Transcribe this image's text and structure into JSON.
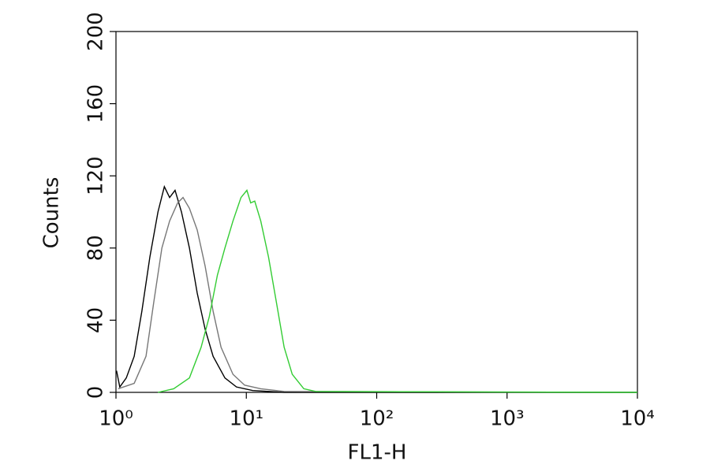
{
  "chart_data": {
    "type": "line",
    "x_label": "FL1-H",
    "y_label": "Counts",
    "xscale": "log",
    "xlim": [
      1,
      10000
    ],
    "xticks": [
      {
        "value": 1,
        "label": "10⁰"
      },
      {
        "value": 10,
        "label": "10¹"
      },
      {
        "value": 100,
        "label": "10²"
      },
      {
        "value": 1000,
        "label": "10³"
      },
      {
        "value": 10000,
        "label": "10⁴"
      }
    ],
    "ylim": [
      0,
      200
    ],
    "yticks": [
      0,
      40,
      80,
      120,
      160,
      200
    ],
    "series": [
      {
        "name": "black",
        "color": "#000000",
        "x": [
          1.01,
          1.07,
          1.2,
          1.38,
          1.58,
          1.82,
          2.1,
          2.35,
          2.58,
          2.84,
          3.18,
          3.66,
          4.2,
          4.83,
          5.56,
          6.85,
          8.4,
          11.2,
          19.5,
          10000
        ],
        "values": [
          12,
          3,
          8,
          20,
          45,
          75,
          100,
          114,
          108,
          112,
          100,
          80,
          55,
          35,
          20,
          8,
          3,
          1,
          0,
          0
        ]
      },
      {
        "name": "gray",
        "color": "#777777",
        "x": [
          1.04,
          1.38,
          1.7,
          1.95,
          2.25,
          2.58,
          2.97,
          3.27,
          3.66,
          4.2,
          4.83,
          5.56,
          6.4,
          7.9,
          9.7,
          12.9,
          19.5,
          10000
        ],
        "values": [
          2,
          5,
          20,
          50,
          80,
          95,
          105,
          108,
          102,
          90,
          70,
          45,
          25,
          10,
          4,
          2,
          0.5,
          0
        ]
      },
      {
        "name": "green",
        "color": "#33cc33",
        "x": [
          2.1,
          2.77,
          3.66,
          4.5,
          5.2,
          6.0,
          6.85,
          7.9,
          9.1,
          10.1,
          10.8,
          11.6,
          12.9,
          14.8,
          17.0,
          19.5,
          22.5,
          27.6,
          34,
          10000
        ],
        "values": [
          0,
          2,
          8,
          25,
          42,
          65,
          80,
          95,
          108,
          112,
          105,
          106,
          95,
          75,
          50,
          25,
          10,
          2,
          0.5,
          0
        ]
      }
    ]
  }
}
